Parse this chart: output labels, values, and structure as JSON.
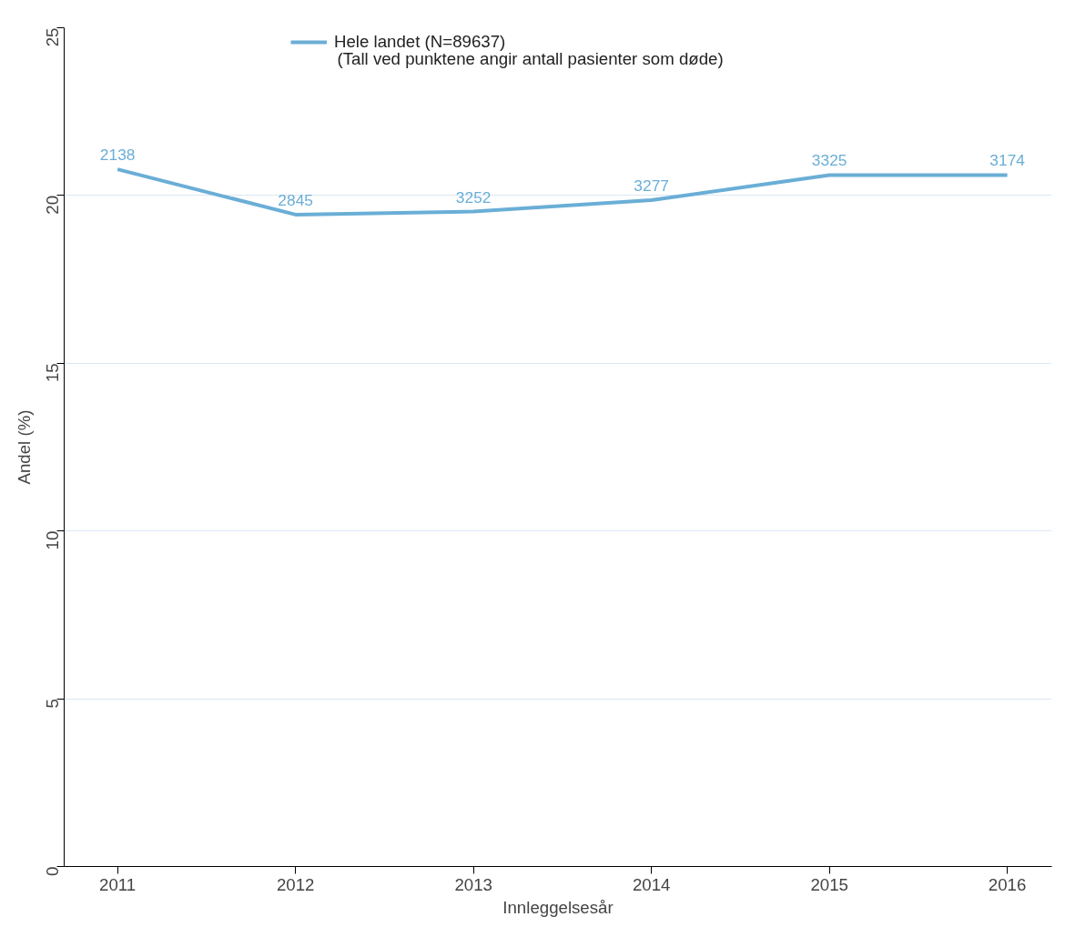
{
  "chart_data": {
    "type": "line",
    "xlabel": "Innleggelsesår",
    "ylabel": "Andel (%)",
    "categories": [
      "2011",
      "2012",
      "2013",
      "2014",
      "2015",
      "2016"
    ],
    "series": [
      {
        "name": "Hele landet (N=89637)",
        "color": "#6aaed6",
        "values": [
          20.78,
          19.43,
          19.52,
          19.86,
          20.61,
          20.61
        ]
      }
    ],
    "annotations": [
      "(Tall ved punktene angir antall pasienter som døde)",
      {
        "text": "2138",
        "x": "2011",
        "y": 20.78
      },
      {
        "text": "2845",
        "x": "2012",
        "y": 19.43
      },
      {
        "text": "3252",
        "x": "2013",
        "y": 19.52
      },
      {
        "text": "3277",
        "x": "2014",
        "y": 19.86
      },
      {
        "text": "3325",
        "x": "2015",
        "y": 20.61
      },
      {
        "text": "3174",
        "x": "2016",
        "y": 20.61
      }
    ],
    "ylim": [
      0,
      25
    ],
    "yticks": [
      0,
      5,
      10,
      15,
      20,
      25
    ],
    "grid": "y",
    "legend": "top",
    "marker": "none",
    "line_style": "solid"
  }
}
